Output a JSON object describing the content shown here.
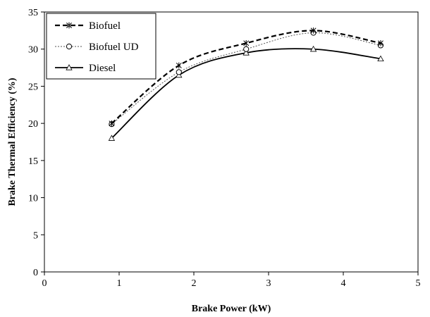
{
  "chart_data": {
    "type": "line",
    "xlabel": "Brake Power (kW)",
    "ylabel": "Brake Thermal Efficiency (%)",
    "xlim": [
      0,
      5
    ],
    "ylim": [
      0,
      35
    ],
    "xticks": [
      0,
      1,
      2,
      3,
      4,
      5
    ],
    "yticks": [
      0,
      5,
      10,
      15,
      20,
      25,
      30,
      35
    ],
    "grid": false,
    "legend_position": "top-left",
    "x": [
      0.9,
      1.8,
      2.7,
      3.6,
      4.5
    ],
    "series": [
      {
        "name": "Biofuel",
        "values": [
          20.0,
          27.8,
          30.8,
          32.5,
          30.8
        ],
        "marker": "asterisk",
        "line_style": "dashed-heavy",
        "color": "#000000"
      },
      {
        "name": "Biofuel UD",
        "values": [
          19.9,
          26.9,
          30.0,
          32.2,
          30.5
        ],
        "marker": "circle",
        "line_style": "dotted-light",
        "color": "#555555"
      },
      {
        "name": "Diesel",
        "values": [
          18.0,
          26.5,
          29.5,
          30.0,
          28.7
        ],
        "marker": "triangle",
        "line_style": "solid",
        "color": "#000000"
      }
    ]
  }
}
